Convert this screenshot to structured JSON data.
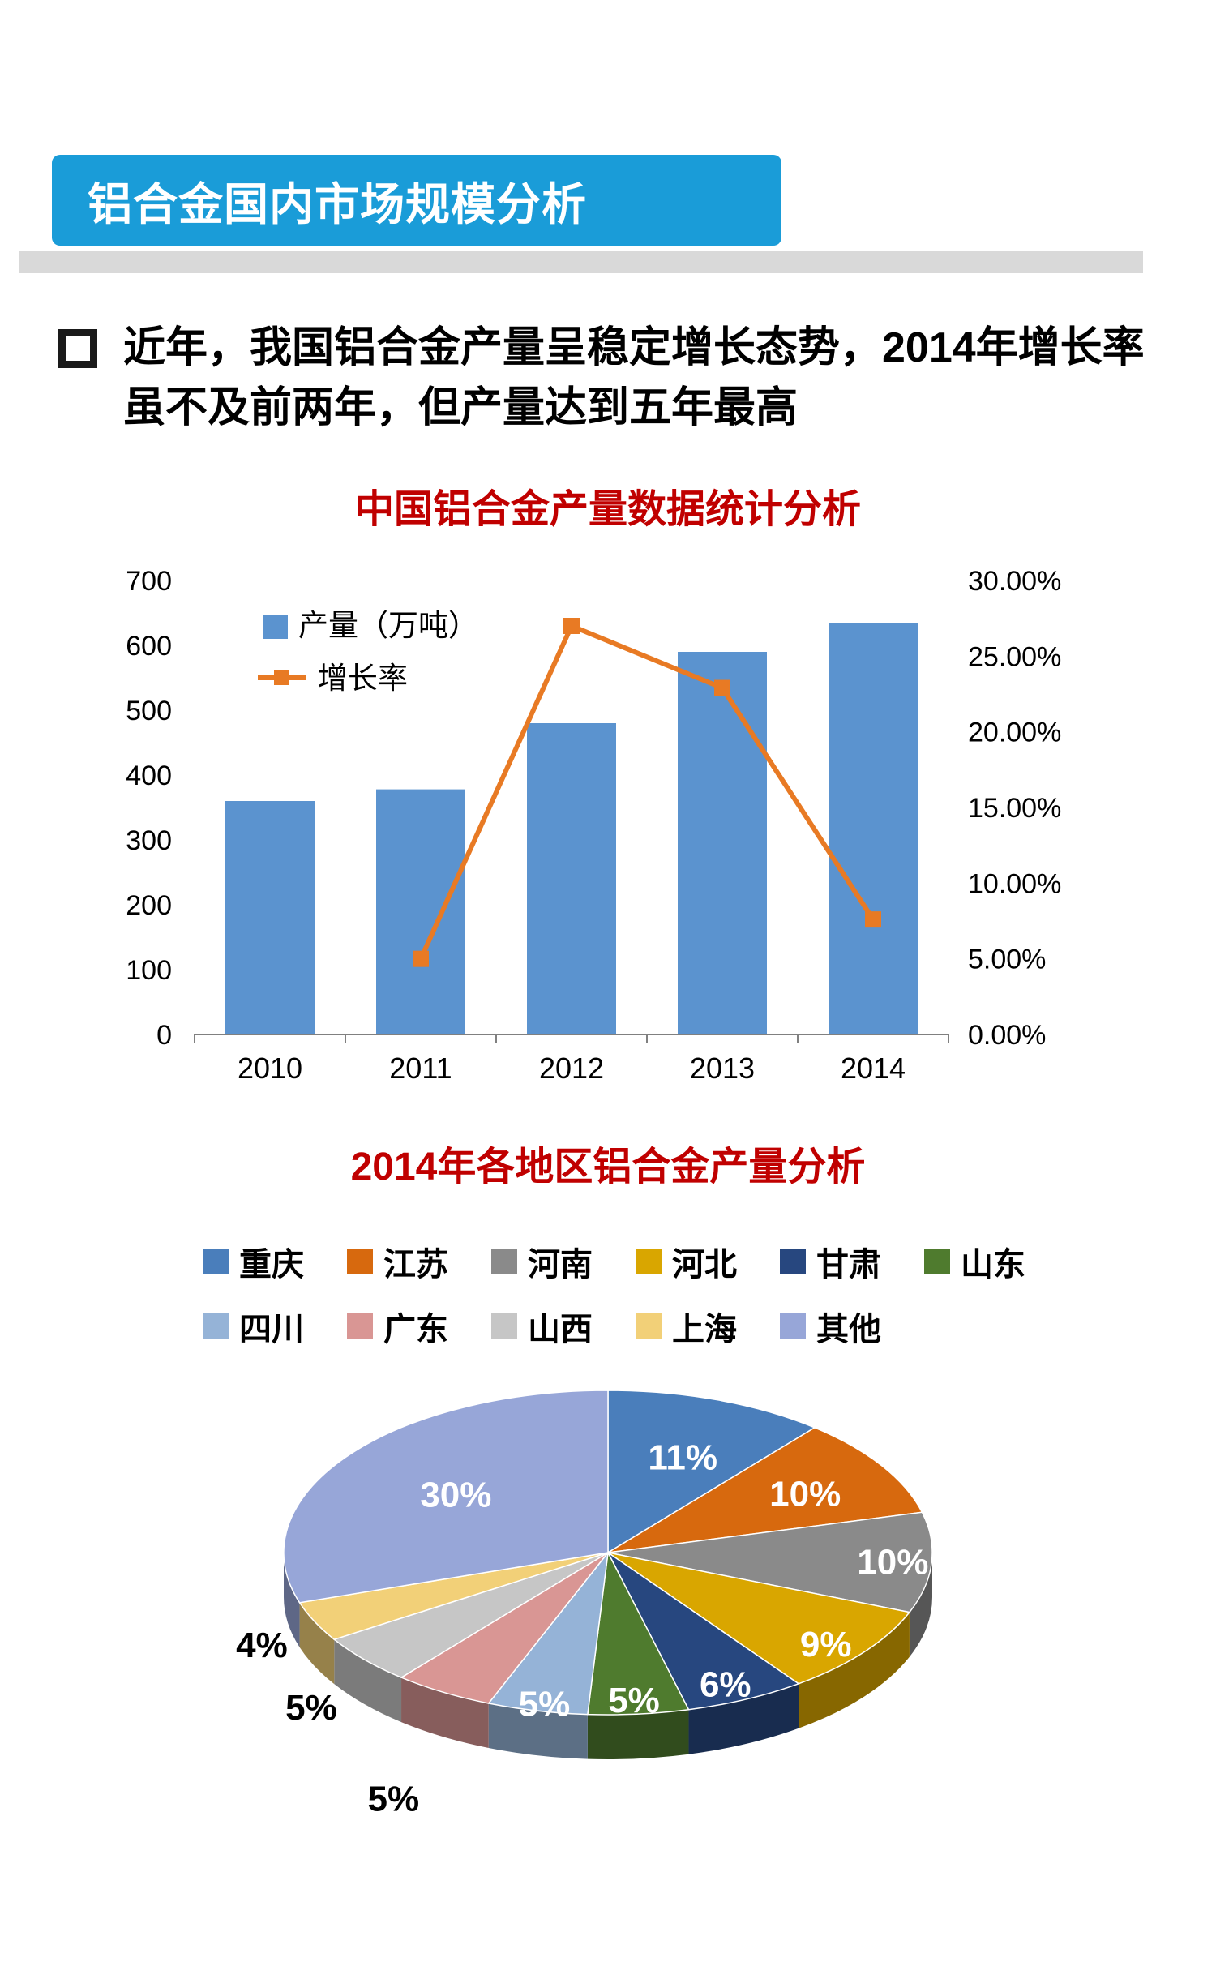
{
  "header": {
    "title": "铝合金国内市场规模分析",
    "bg_color": "#1a9cd8",
    "text_color": "#ffffff",
    "underline_color": "#d9d9d9"
  },
  "bullet": {
    "marker_icon": "hollow-square-bullet",
    "text": "近年，我国铝合金产量呈稳定增长态势，2014年增长率虽不及前两年，但产量达到五年最高"
  },
  "chart_data": [
    {
      "type": "combo-bar-line",
      "title": "中国铝合金产量数据统计分析",
      "title_color": "#c00000",
      "categories": [
        "2010",
        "2011",
        "2012",
        "2013",
        "2014"
      ],
      "series": [
        {
          "name": "产量（万吨）",
          "chart_type": "bar",
          "axis": "left",
          "color": "#5b93cf",
          "values": [
            360,
            378,
            480,
            590,
            635
          ]
        },
        {
          "name": "增长率",
          "chart_type": "line",
          "axis": "right",
          "color": "#e87a24",
          "values": [
            null,
            5.0,
            27.0,
            22.9,
            7.6
          ]
        }
      ],
      "left_axis": {
        "min": 0,
        "max": 700,
        "ticks": [
          "0",
          "100",
          "200",
          "300",
          "400",
          "500",
          "600",
          "700"
        ]
      },
      "right_axis": {
        "min": 0,
        "max": 30,
        "ticks": [
          "0.00%",
          "5.00%",
          "10.00%",
          "15.00%",
          "20.00%",
          "25.00%",
          "30.00%"
        ]
      },
      "legend_position": "inside-top-left",
      "grid": false
    },
    {
      "type": "pie",
      "pie_style": "3d",
      "title": "2014年各地区铝合金产量分析",
      "title_color": "#c00000",
      "labels": [
        "重庆",
        "江苏",
        "河南",
        "河北",
        "甘肃",
        "山东",
        "四川",
        "广东",
        "山西",
        "上海",
        "其他"
      ],
      "values": [
        11,
        10,
        10,
        9,
        6,
        5,
        5,
        5,
        5,
        4,
        30
      ],
      "value_labels": [
        "11%",
        "10%",
        "10%",
        "9%",
        "6%",
        "5%",
        "5%",
        "5%",
        "5%",
        "4%",
        "30%"
      ],
      "colors": [
        "#4a7ebb",
        "#d7690e",
        "#8a8a8a",
        "#d9a600",
        "#27477f",
        "#4f7b2e",
        "#95b3d7",
        "#d99694",
        "#c6c6c6",
        "#f2d078",
        "#97a6d8"
      ],
      "legend_position": "top",
      "legend_columns": 6
    }
  ]
}
